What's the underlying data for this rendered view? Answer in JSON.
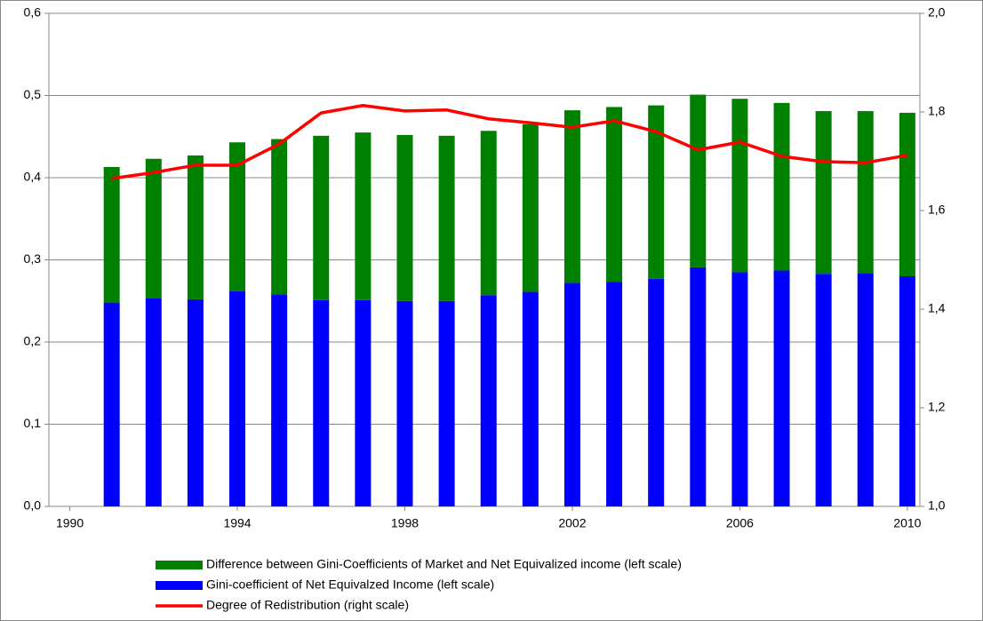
{
  "chart_data": {
    "type": "bar-line",
    "x": [
      1991,
      1992,
      1993,
      1994,
      1995,
      1996,
      1997,
      1998,
      1999,
      2000,
      2001,
      2002,
      2003,
      2004,
      2005,
      2006,
      2007,
      2008,
      2009,
      2010
    ],
    "series": [
      {
        "name": "Gini-coefficient of Net Equivalzed Income (left scale)",
        "color": "#0000ff",
        "kind": "bar",
        "values": [
          0.248,
          0.253,
          0.252,
          0.262,
          0.258,
          0.251,
          0.251,
          0.25,
          0.25,
          0.257,
          0.261,
          0.272,
          0.273,
          0.277,
          0.291,
          0.285,
          0.287,
          0.283,
          0.284,
          0.28
        ]
      },
      {
        "name": "Difference between Gini-Coefficients of Market and Net Equivalized income (left scale)",
        "color": "#008000",
        "kind": "bar",
        "values": [
          0.165,
          0.17,
          0.175,
          0.181,
          0.189,
          0.2,
          0.204,
          0.202,
          0.201,
          0.2,
          0.204,
          0.21,
          0.213,
          0.211,
          0.21,
          0.211,
          0.204,
          0.198,
          0.197,
          0.199
        ]
      },
      {
        "name": "Degree of Redistribution (right scale)",
        "color": "#ff0000",
        "kind": "line",
        "axis": "y2",
        "values": [
          1.665,
          1.677,
          1.692,
          1.692,
          1.735,
          1.798,
          1.813,
          1.802,
          1.804,
          1.786,
          1.778,
          1.769,
          1.782,
          1.76,
          1.723,
          1.739,
          1.71,
          1.699,
          1.697,
          1.712
        ]
      }
    ],
    "legend_order": [
      1,
      0,
      2
    ],
    "xlim": [
      1989.5,
      2010.3
    ],
    "xticks": [
      1990,
      1994,
      1998,
      2002,
      2006,
      2010
    ],
    "ylim": [
      0,
      0.6
    ],
    "yticks": [
      {
        "value": 0,
        "label": "0,0"
      },
      {
        "value": 0.1,
        "label": "0,1"
      },
      {
        "value": 0.2,
        "label": "0,2"
      },
      {
        "value": 0.3,
        "label": "0,3"
      },
      {
        "value": 0.4,
        "label": "0,4"
      },
      {
        "value": 0.5,
        "label": "0,5"
      },
      {
        "value": 0.6,
        "label": "0,6"
      }
    ],
    "y2lim": [
      1.0,
      2.0
    ],
    "y2ticks": [
      {
        "value": 1.0,
        "label": "1,0"
      },
      {
        "value": 1.2,
        "label": "1,2"
      },
      {
        "value": 1.4,
        "label": "1,4"
      },
      {
        "value": 1.6,
        "label": "1,6"
      },
      {
        "value": 1.8,
        "label": "1,8"
      },
      {
        "value": 2.0,
        "label": "2,0"
      }
    ],
    "grid": true,
    "legend_position": "bottom"
  }
}
